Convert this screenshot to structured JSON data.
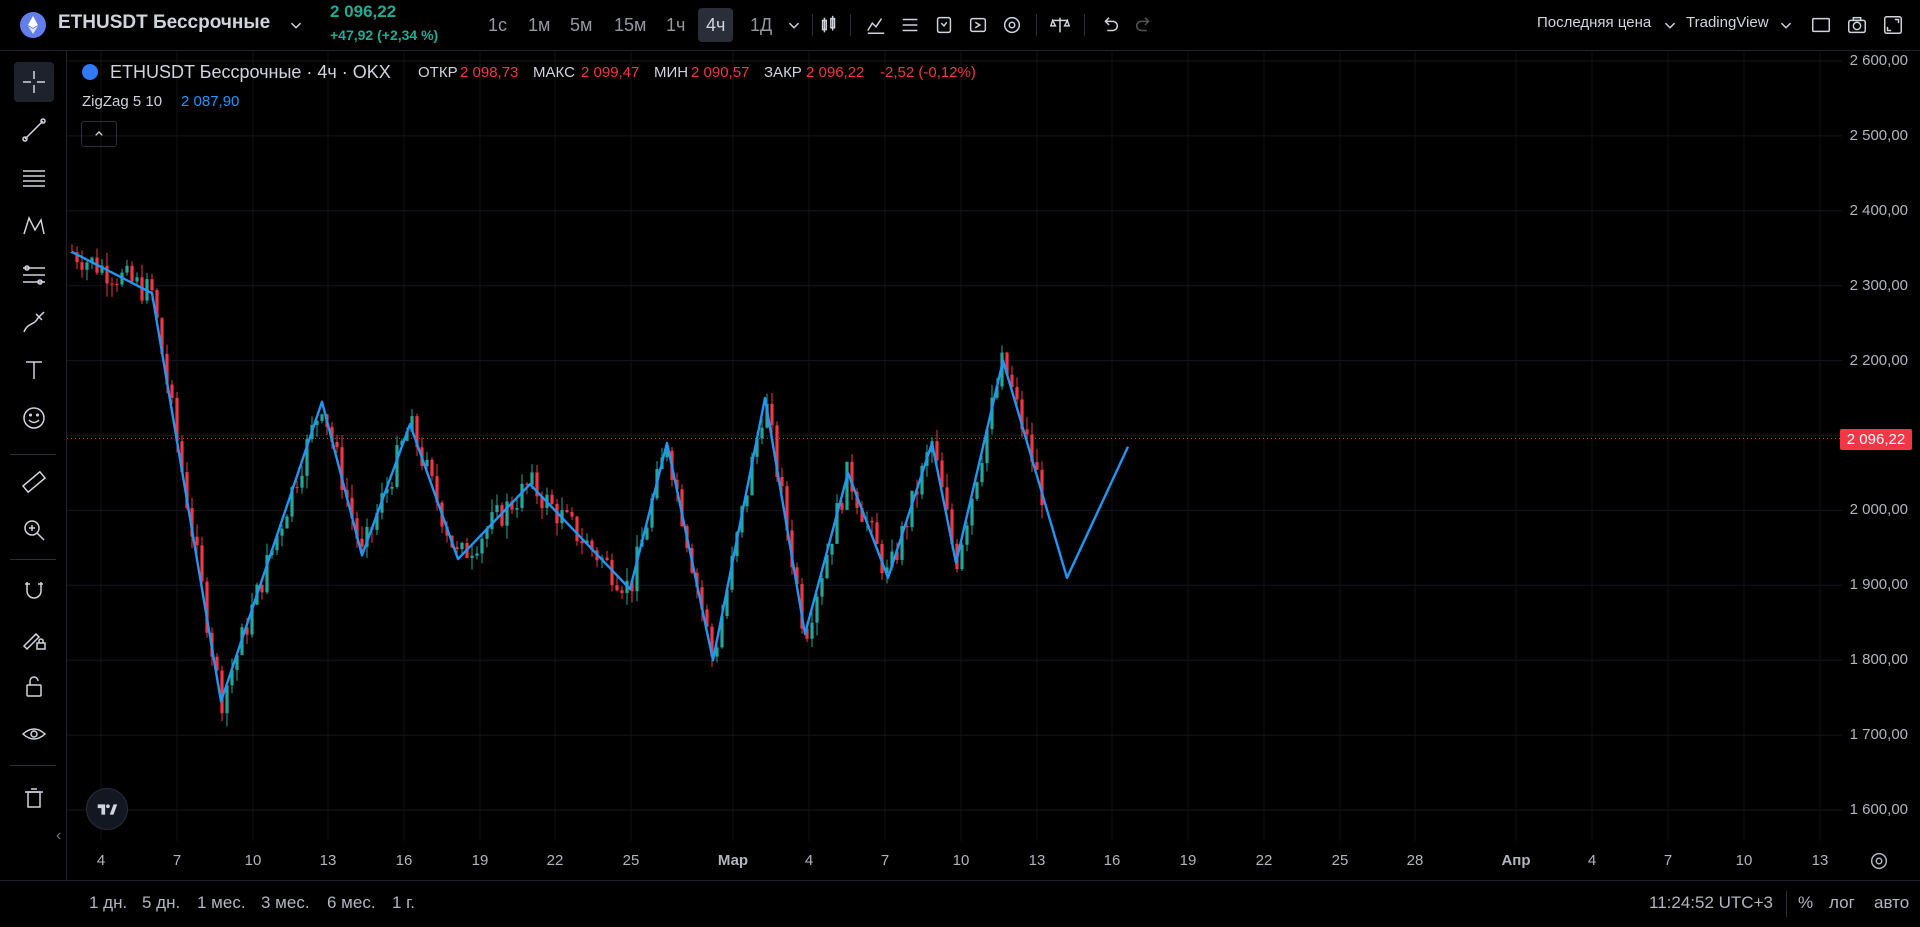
{
  "header": {
    "symbol": "ETHUSDT Бессрочные",
    "last_price": "2 096,22",
    "change": "+47,92 (+2,34 %)",
    "intervals": [
      "1с",
      "1м",
      "5м",
      "15м",
      "1ч",
      "4ч",
      "1Д"
    ],
    "active_interval": "4ч",
    "price_source": "Последняя цена",
    "provider": "TradingView"
  },
  "legend": {
    "title": "ETHUSDT Бессрочные · 4ч · OKX",
    "open_label": "ОТКР",
    "open": "2 098,73",
    "high_label": "МАКС",
    "high": "2 099,47",
    "low_label": "МИН",
    "low": "2 090,57",
    "close_label": "ЗАКР",
    "close": "2 096,22",
    "change": "-2,52 (-0,12%)",
    "indicator_name": "ZigZag 5 10",
    "indicator_value": "2 087,90"
  },
  "colors": {
    "up": "#26a69a",
    "down": "#f23645",
    "zigzag": "#2196f3",
    "price_label_bg": "#f23645",
    "accent_green": "#22ab94"
  },
  "price_axis": {
    "ticks": [
      "2 600,00",
      "2 500,00",
      "2 400,00",
      "2 300,00",
      "2 200,00",
      "2 100,00",
      "2 000,00",
      "1 900,00",
      "1 800,00",
      "1 700,00",
      "1 600,00"
    ],
    "current_price_label": "2 096,22"
  },
  "time_axis": {
    "ticks": [
      "4",
      "7",
      "10",
      "13",
      "16",
      "19",
      "22",
      "25",
      "Мар",
      "4",
      "7",
      "10",
      "13",
      "16",
      "19",
      "22",
      "25",
      "28",
      "Апр",
      "4",
      "7",
      "10",
      "13"
    ]
  },
  "bottom": {
    "ranges": [
      "1 дн.",
      "5 дн.",
      "1 мес.",
      "3 мес.",
      "6 мес.",
      "1 г."
    ],
    "clock": "11:24:52 UTC+3",
    "percent": "%",
    "log": "лог",
    "auto": "авто"
  },
  "icons": {
    "left_toolbar": [
      "crosshair-icon",
      "trendline-icon",
      "fib-icon",
      "pattern-icon",
      "prediction-icon",
      "brush-icon",
      "text-icon",
      "emoji-icon",
      "ruler-icon",
      "zoom-icon",
      "magnet-icon",
      "lock-drawing-icon",
      "lock-icon",
      "eye-icon",
      "trash-icon"
    ]
  },
  "chart_data": {
    "type": "line",
    "title": "",
    "xlabel": "",
    "ylabel": "",
    "ylim": [
      1560,
      2640
    ],
    "series": [
      {
        "values": [
          [
            2345,
            2290,
            1745,
            2145,
            1940,
            2115,
            1935,
            2035,
            1895,
            2090,
            1800,
            2150,
            1835,
            2050,
            1910,
            2090,
            1930,
            2200,
            1910,
            2085
          ]
        ]
      }
    ],
    "current_price": 2096.22
  }
}
